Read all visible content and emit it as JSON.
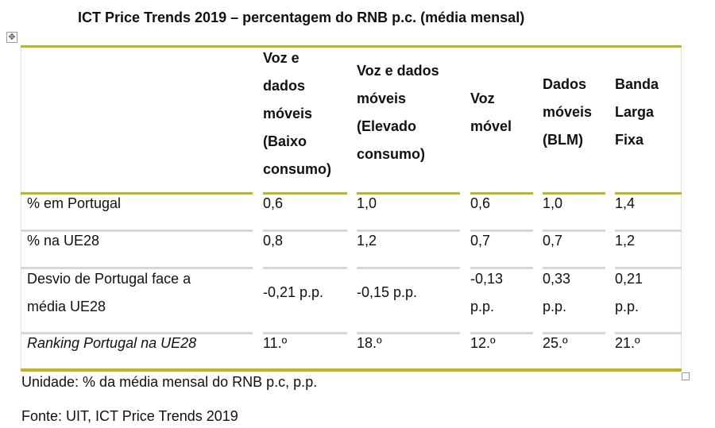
{
  "title": "ICT Price Trends  2019 – percentagem do RNB p.c. (média mensal)",
  "table": {
    "headers": [
      {
        "lines": [
          "Voz e",
          "dados",
          "móveis",
          "(Baixo",
          "consumo)"
        ]
      },
      {
        "lines": [
          "Voz e dados",
          "móveis",
          "(Elevado",
          "consumo)"
        ]
      },
      {
        "lines": [
          "Voz",
          "móvel"
        ]
      },
      {
        "lines": [
          "Dados",
          "móveis",
          "(BLM)"
        ]
      },
      {
        "lines": [
          "Banda",
          "Larga",
          "Fixa"
        ]
      }
    ],
    "rows": [
      {
        "label": [
          "% em Portugal"
        ],
        "values": [
          [
            "0,6"
          ],
          [
            "1,0"
          ],
          [
            "0,6"
          ],
          [
            "1,0"
          ],
          [
            "1,4"
          ]
        ]
      },
      {
        "label": [
          "% na UE28"
        ],
        "values": [
          [
            "0,8"
          ],
          [
            "1,2"
          ],
          [
            "0,7"
          ],
          [
            "0,7"
          ],
          [
            "1,2"
          ]
        ]
      },
      {
        "label": [
          "Desvio de Portugal face a",
          "média UE28"
        ],
        "values": [
          [
            "-0,21 p.p."
          ],
          [
            "-0,15 p.p."
          ],
          [
            "-0,13",
            "p.p."
          ],
          [
            "0,33",
            "p.p."
          ],
          [
            "0,21",
            "p.p."
          ]
        ]
      },
      {
        "label": [
          "Ranking Portugal na UE28"
        ],
        "values": [
          [
            "11.º"
          ],
          [
            "18.º"
          ],
          [
            "12.º"
          ],
          [
            "25.º"
          ],
          [
            "21.º"
          ]
        ]
      }
    ]
  },
  "unit_note": "Unidade: % da média mensal do RNB p.c, p.p.",
  "source_note": "Fonte: UIT, ICT Price Trends 2019",
  "icons": {
    "move_handle": "move-arrows-icon",
    "resize_handle": "resize-handle-icon"
  },
  "colors": {
    "rule_accent": "#bdb426",
    "rule_gray": "#d6d6d6"
  }
}
